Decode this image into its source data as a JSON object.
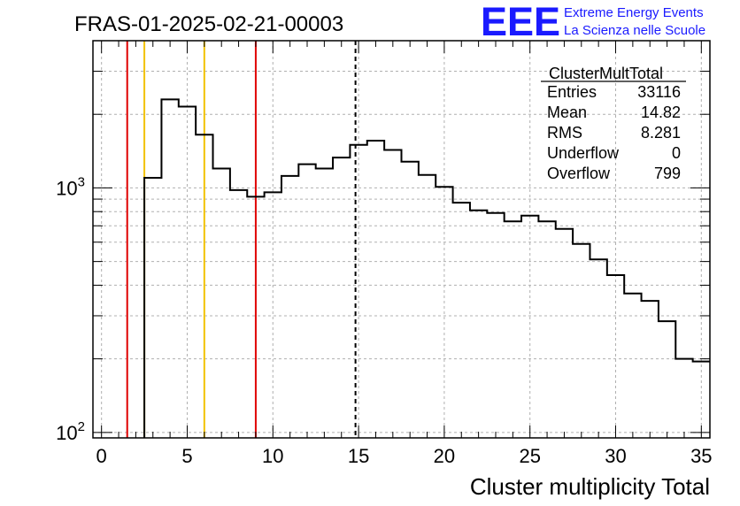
{
  "title": "FRAS-01-2025-02-21-00003",
  "logo": {
    "mark": "EEE",
    "line1": "Extreme Energy Events",
    "line2": "La Scienza nelle Scuole",
    "color": "#1a1aff"
  },
  "stats_box": {
    "name": "ClusterMultTotal",
    "rows": [
      {
        "label": "Entries",
        "value": "33116"
      },
      {
        "label": "Mean",
        "value": "14.82"
      },
      {
        "label": "RMS",
        "value": "8.281"
      },
      {
        "label": "Underflow",
        "value": "0"
      },
      {
        "label": "Overflow",
        "value": "799"
      }
    ]
  },
  "chart_data": {
    "type": "step-histogram",
    "xlabel": "Cluster multiplicity Total",
    "ylabel": "",
    "xlim": [
      -0.5,
      35.5
    ],
    "ylim": [
      95,
      4000
    ],
    "yscale": "log",
    "grid": true,
    "xticks": [
      0,
      5,
      10,
      15,
      20,
      25,
      30,
      35
    ],
    "yticks": [
      {
        "value": 100,
        "base": "10",
        "exp": "2"
      },
      {
        "value": 1000,
        "base": "10",
        "exp": "3"
      }
    ],
    "bin_edges": [
      2.5,
      3.5,
      4.5,
      5.5,
      6.5,
      7.5,
      8.5,
      9.5,
      10.5,
      11.5,
      12.5,
      13.5,
      14.5,
      15.5,
      16.5,
      17.5,
      18.5,
      19.5,
      20.5,
      21.5,
      22.5,
      23.5,
      24.5,
      25.5,
      26.5,
      27.5,
      28.5,
      29.5,
      30.5,
      31.5,
      32.5,
      33.5,
      34.5,
      35.5
    ],
    "values": [
      1100,
      2300,
      2150,
      1650,
      1200,
      980,
      920,
      960,
      1120,
      1250,
      1200,
      1330,
      1500,
      1560,
      1430,
      1280,
      1130,
      1010,
      870,
      810,
      790,
      730,
      770,
      730,
      680,
      590,
      510,
      440,
      370,
      345,
      285,
      200,
      195
    ],
    "vertical_lines": [
      {
        "x": 1.5,
        "color": "#e00000",
        "style": "solid"
      },
      {
        "x": 2.5,
        "color": "#f2c200",
        "style": "solid"
      },
      {
        "x": 6.0,
        "color": "#f2c200",
        "style": "solid"
      },
      {
        "x": 9.0,
        "color": "#e00000",
        "style": "solid"
      },
      {
        "x": 14.82,
        "color": "#000000",
        "style": "dashed"
      }
    ]
  }
}
